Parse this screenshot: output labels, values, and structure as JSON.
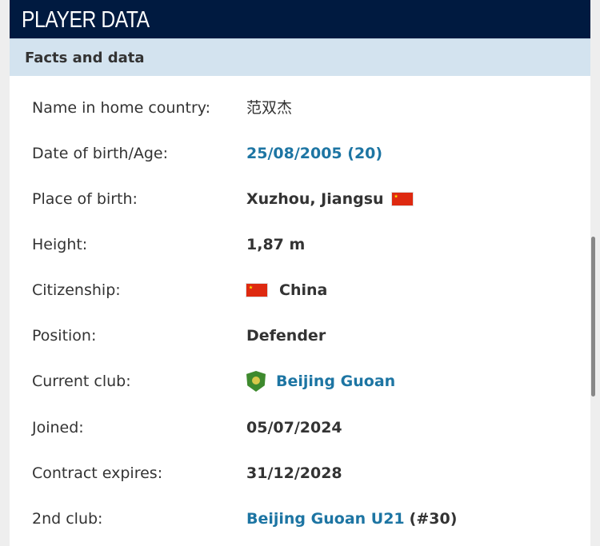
{
  "header": {
    "title": "PLAYER DATA"
  },
  "section": {
    "title": "Facts and data"
  },
  "rows": [
    {
      "label": "Name in home country:",
      "value": "范双杰"
    },
    {
      "label": "Date of birth/Age:",
      "value": "25/08/2005 (20)"
    },
    {
      "label": "Place of birth:",
      "value": "Xuzhou, Jiangsu"
    },
    {
      "label": "Height:",
      "value": "1,87 m"
    },
    {
      "label": "Citizenship:",
      "value": "China"
    },
    {
      "label": "Position:",
      "value": "Defender"
    },
    {
      "label": "Current club:",
      "value": "Beijing Guoan"
    },
    {
      "label": "Joined:",
      "value": "05/07/2024"
    },
    {
      "label": "Contract expires:",
      "value": "31/12/2028"
    },
    {
      "label": "2nd club:",
      "value": "Beijing Guoan U21",
      "suffix": "(#30)"
    }
  ],
  "colors": {
    "header_bg": "#001a40",
    "section_bg": "#d3e3ef",
    "link": "#1d75a3"
  },
  "icons": {
    "flag": "china-flag-icon",
    "club": "beijing-guoan-crest-icon"
  }
}
